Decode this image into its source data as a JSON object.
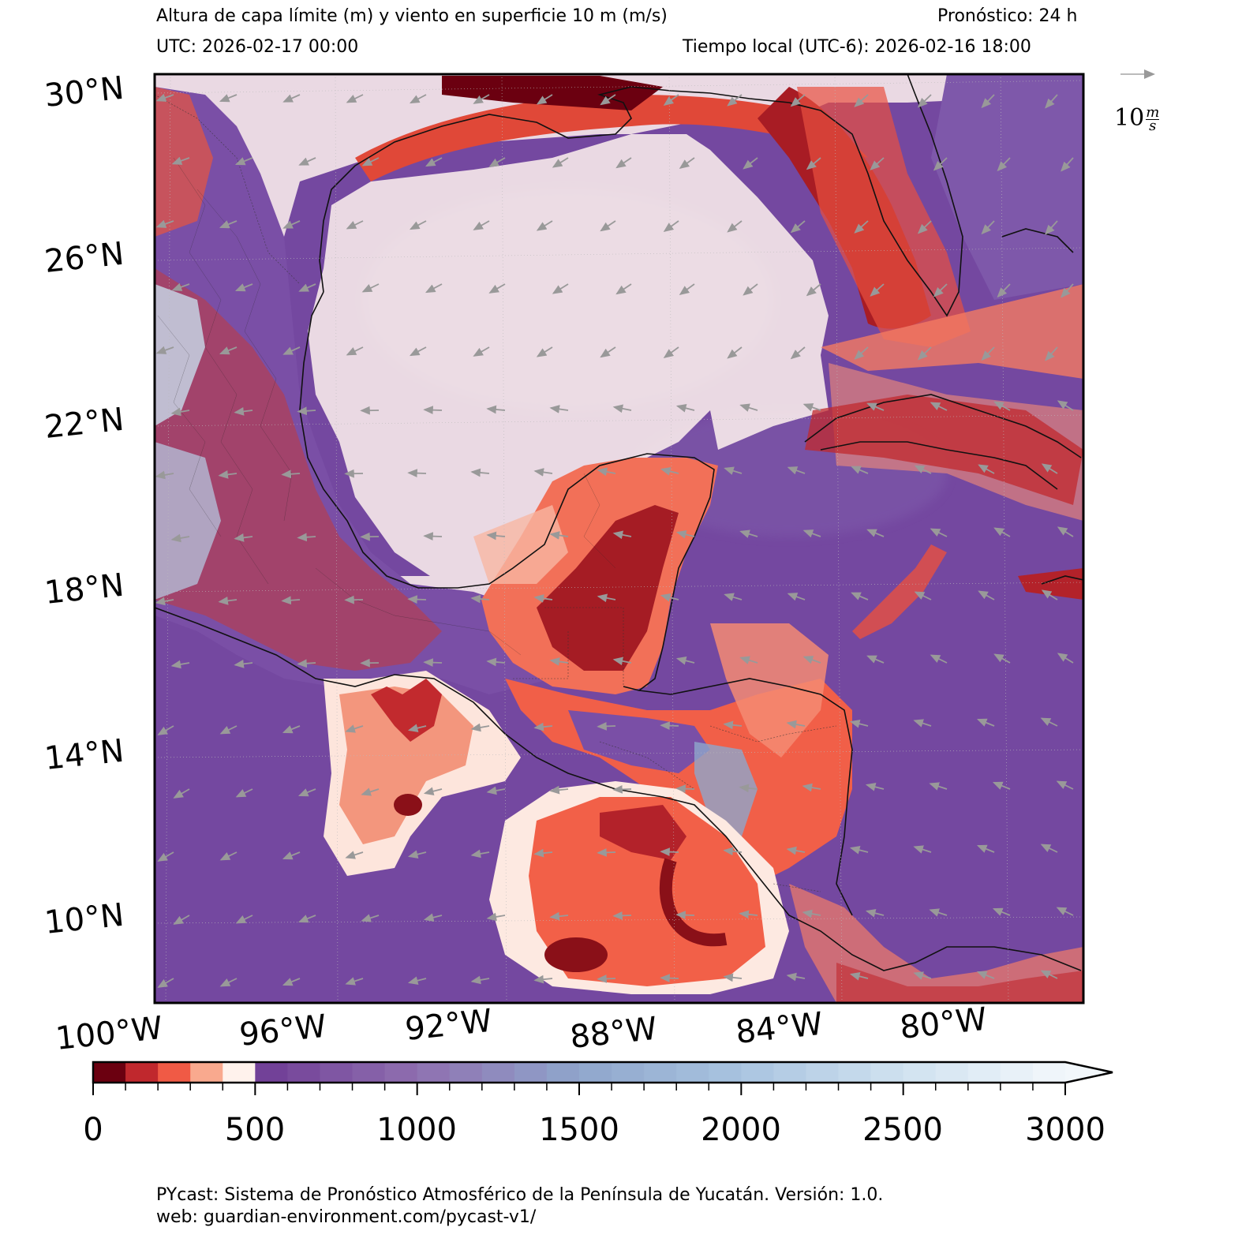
{
  "header": {
    "title": "Altura de capa límite (m) y viento en superficie 10 m (m/s)",
    "forecast": "Pronóstico: 24 h",
    "utc": "UTC:  2026-02-17 00:00",
    "local_time": "Tiempo local (UTC-6): 2026-02-16 18:00"
  },
  "map": {
    "lat_labels": [
      "30°N",
      "26°N",
      "22°N",
      "18°N",
      "14°N",
      "10°N"
    ],
    "lon_labels": [
      "100°W",
      "96°W",
      "92°W",
      "88°W",
      "84°W",
      "80°W"
    ],
    "extent": {
      "lon_min": -100,
      "lon_max": -77.5,
      "lat_min": 7.5,
      "lat_max": 30
    },
    "wind_reference": {
      "value": "10",
      "unit_num": "m",
      "unit_den": "s"
    }
  },
  "colorbar": {
    "tick_labels": [
      "0",
      "500",
      "1000",
      "1500",
      "2000",
      "2500",
      "3000"
    ],
    "range": [
      0,
      3000
    ],
    "extend": "max",
    "levels_step": 100,
    "colors": {
      "0": "#6b0010",
      "100": "#c0282d",
      "200": "#f05a45",
      "300": "#f9a98e",
      "400": "#fff2ec",
      "500": "#6f3c95",
      "1000": "#8f6fb0",
      "1500": "#8fa6cc",
      "2000": "#a9c4e0",
      "2500": "#d0e2f0",
      "3000": "#f2f7fb"
    }
  },
  "footer": {
    "line1": "PYcast: Sistema de Pronóstico Atmosférico de la Península de Yucatán. Versión: 1.0.",
    "line2": "web: guardian-environment.com/pycast-v1/"
  }
}
